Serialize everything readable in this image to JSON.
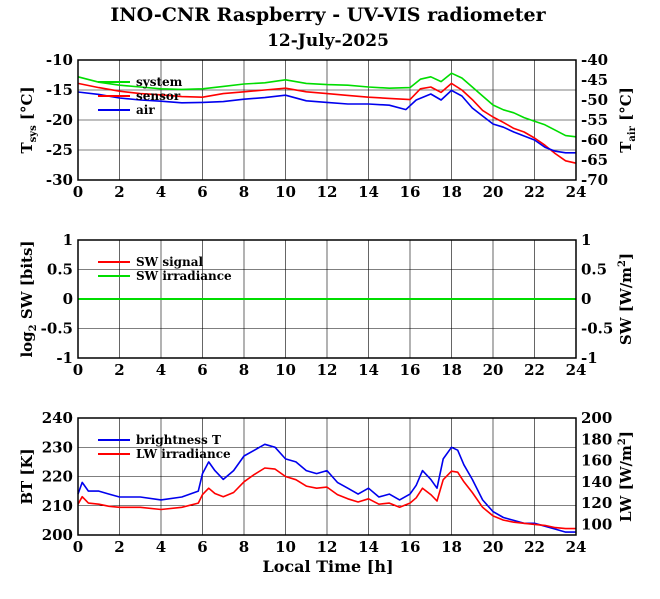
{
  "header": {
    "title": "INO-CNR Raspberry - UV-VIS radiometer",
    "date": "12-July-2025"
  },
  "x_axis_label": "Local Time [h]",
  "chart_data": [
    {
      "type": "line",
      "panel": "temperature",
      "ylabel": "T_sys [°C]",
      "ylabel_main": "T",
      "ylabel_sub": "sys",
      "ylabel_rest": " [°C]",
      "y2label": "T_air [°C]",
      "y2label_main": "T",
      "y2label_sub": "air",
      "y2label_rest": " [°C]",
      "xlim": [
        0,
        24
      ],
      "ylim": [
        -30,
        -10
      ],
      "y2lim": [
        -70,
        -40
      ],
      "xticks": [
        "0",
        "2",
        "4",
        "6",
        "8",
        "10",
        "12",
        "14",
        "16",
        "18",
        "20",
        "22",
        "24"
      ],
      "yticks": [
        "-30",
        "-25",
        "-20",
        "-15",
        "-10"
      ],
      "y2ticks": [
        "-70",
        "-65",
        "-60",
        "-55",
        "-50",
        "-45",
        "-40"
      ],
      "legend_position": "top-left",
      "grid": true,
      "series": [
        {
          "name": "system",
          "color": "#00dd00",
          "axis": "left",
          "x": [
            0,
            1,
            2,
            3,
            4,
            5,
            6,
            7,
            8,
            9,
            10,
            11,
            12,
            13,
            14,
            15,
            16,
            16.5,
            17,
            17.5,
            18,
            18.5,
            19,
            19.5,
            20,
            20.5,
            21,
            21.5,
            22,
            22.5,
            23,
            23.5,
            24
          ],
          "y": [
            -12.8,
            -13.7,
            -14.2,
            -14.5,
            -14.8,
            -14.9,
            -14.8,
            -14.4,
            -14.0,
            -13.8,
            -13.3,
            -13.9,
            -14.1,
            -14.2,
            -14.5,
            -14.7,
            -14.6,
            -13.2,
            -12.8,
            -13.6,
            -12.2,
            -13.0,
            -14.5,
            -16.0,
            -17.5,
            -18.3,
            -18.8,
            -19.6,
            -20.2,
            -20.8,
            -21.7,
            -22.6,
            -22.8
          ]
        },
        {
          "name": "sensor",
          "color": "#ff0000",
          "axis": "left",
          "x": [
            0,
            1,
            2,
            3,
            4,
            5,
            6,
            7,
            8,
            9,
            10,
            11,
            12,
            13,
            14,
            15,
            16,
            16.5,
            17,
            17.5,
            18,
            18.5,
            19,
            19.5,
            20,
            20.5,
            21,
            21.5,
            22,
            22.5,
            23,
            23.5,
            24
          ],
          "y": [
            -13.9,
            -14.6,
            -15.2,
            -15.6,
            -15.8,
            -16.1,
            -16.2,
            -15.6,
            -15.3,
            -15.0,
            -14.7,
            -15.3,
            -15.6,
            -15.9,
            -16.2,
            -16.4,
            -16.6,
            -14.8,
            -14.5,
            -15.4,
            -13.9,
            -15.0,
            -16.6,
            -18.4,
            -19.5,
            -20.4,
            -21.4,
            -22.0,
            -23.0,
            -24.2,
            -25.6,
            -26.8,
            -27.2
          ]
        },
        {
          "name": "air",
          "color": "#0000ee",
          "axis": "right",
          "x": [
            0,
            1,
            2,
            3,
            4,
            5,
            6,
            7,
            8,
            9,
            10,
            11,
            12,
            13,
            14,
            15,
            15.8,
            16.3,
            17,
            17.5,
            18,
            18.5,
            19,
            19.5,
            20,
            20.5,
            21,
            21.5,
            22,
            22.5,
            23,
            23.5,
            24
          ],
          "y": [
            -48.0,
            -48.6,
            -49.5,
            -50.0,
            -50.3,
            -50.7,
            -50.6,
            -50.4,
            -49.8,
            -49.4,
            -48.8,
            -50.2,
            -50.6,
            -51.0,
            -51.0,
            -51.3,
            -52.4,
            -50.0,
            -48.5,
            -50.0,
            -47.6,
            -49.0,
            -52.0,
            -54.0,
            -56.0,
            -56.8,
            -58.0,
            -59.0,
            -60.0,
            -61.8,
            -62.8,
            -63.2,
            -63.2
          ]
        }
      ]
    },
    {
      "type": "line",
      "panel": "shortwave",
      "ylabel": "log2 SW [bits]",
      "ylabel_main": "log",
      "ylabel_sub": "2",
      "ylabel_rest": " SW [bits]",
      "y2label": "SW [W/m2]",
      "y2label_main": "SW [W/m",
      "y2label_sup": "2",
      "y2label_rest": "]",
      "xlim": [
        0,
        24
      ],
      "ylim": [
        -1,
        1
      ],
      "y2lim": [
        -1,
        1
      ],
      "xticks": [
        "0",
        "2",
        "4",
        "6",
        "8",
        "10",
        "12",
        "14",
        "16",
        "18",
        "20",
        "22",
        "24"
      ],
      "yticks": [
        "-1",
        "-0.5",
        "0",
        "0.5",
        "1"
      ],
      "y2ticks": [
        "-1",
        "-0.5",
        "0",
        "0.5",
        "1"
      ],
      "legend_position": "top-left",
      "grid": true,
      "series": [
        {
          "name": "SW signal",
          "color": "#ff0000",
          "axis": "left",
          "x": [
            0,
            24
          ],
          "y": [
            0,
            0
          ]
        },
        {
          "name": "SW irradiance",
          "color": "#00dd00",
          "axis": "right",
          "x": [
            0,
            24
          ],
          "y": [
            0,
            0
          ]
        }
      ]
    },
    {
      "type": "line",
      "panel": "longwave",
      "ylabel": "BT [K]",
      "y2label": "LW [W/m2]",
      "y2label_main": "LW [W/m",
      "y2label_sup": "2",
      "y2label_rest": "]",
      "xlim": [
        0,
        24
      ],
      "ylim": [
        200,
        240
      ],
      "y2lim": [
        90,
        200
      ],
      "xticks": [
        "0",
        "2",
        "4",
        "6",
        "8",
        "10",
        "12",
        "14",
        "16",
        "18",
        "20",
        "22",
        "24"
      ],
      "yticks": [
        "200",
        "210",
        "220",
        "230",
        "240"
      ],
      "y2ticks": [
        "100",
        "120",
        "140",
        "160",
        "180",
        "200"
      ],
      "legend_position": "top-left",
      "grid": true,
      "series": [
        {
          "name": "brightness T",
          "color": "#0000ee",
          "axis": "left",
          "x": [
            0,
            0.2,
            0.5,
            1,
            1.5,
            2,
            3,
            4,
            5,
            5.8,
            6,
            6.3,
            6.6,
            7,
            7.5,
            8,
            8.5,
            9,
            9.5,
            10,
            10.5,
            11,
            11.5,
            12,
            12.5,
            13,
            13.5,
            14,
            14.5,
            15,
            15.5,
            16,
            16.3,
            16.6,
            17,
            17.3,
            17.6,
            18,
            18.3,
            18.6,
            19,
            19.5,
            20,
            20.5,
            21,
            21.5,
            22,
            22.5,
            23,
            23.5,
            24
          ],
          "y": [
            214,
            218,
            215,
            215,
            214,
            213,
            213,
            212,
            213,
            215,
            221,
            225,
            222,
            219,
            222,
            227,
            229,
            231,
            230,
            226,
            225,
            222,
            221,
            222,
            218,
            216,
            214,
            216,
            213,
            214,
            212,
            214,
            217,
            222,
            219,
            216,
            226,
            230,
            229,
            224,
            219,
            212,
            208,
            206,
            205,
            204,
            204,
            203,
            202,
            201,
            201
          ]
        },
        {
          "name": "LW irradiance",
          "color": "#ff0000",
          "axis": "right",
          "x": [
            0,
            0.2,
            0.5,
            1,
            1.5,
            2,
            3,
            4,
            5,
            5.8,
            6,
            6.3,
            6.6,
            7,
            7.5,
            8,
            8.5,
            9,
            9.5,
            10,
            10.5,
            11,
            11.5,
            12,
            12.5,
            13,
            13.5,
            14,
            14.5,
            15,
            15.5,
            16,
            16.3,
            16.6,
            17,
            17.3,
            17.6,
            18,
            18.3,
            18.6,
            19,
            19.5,
            20,
            20.5,
            21,
            21.5,
            22,
            22.5,
            23,
            23.5,
            24
          ],
          "y": [
            119,
            126,
            120,
            119,
            117,
            116,
            116,
            114,
            116,
            120,
            128,
            134,
            129,
            126,
            130,
            140,
            147,
            153,
            152,
            145,
            142,
            136,
            134,
            135,
            128,
            124,
            121,
            124,
            119,
            120,
            116,
            120,
            125,
            134,
            128,
            122,
            142,
            150,
            149,
            140,
            130,
            116,
            108,
            104,
            102,
            101,
            100,
            99,
            97,
            96,
            96
          ]
        }
      ]
    }
  ]
}
